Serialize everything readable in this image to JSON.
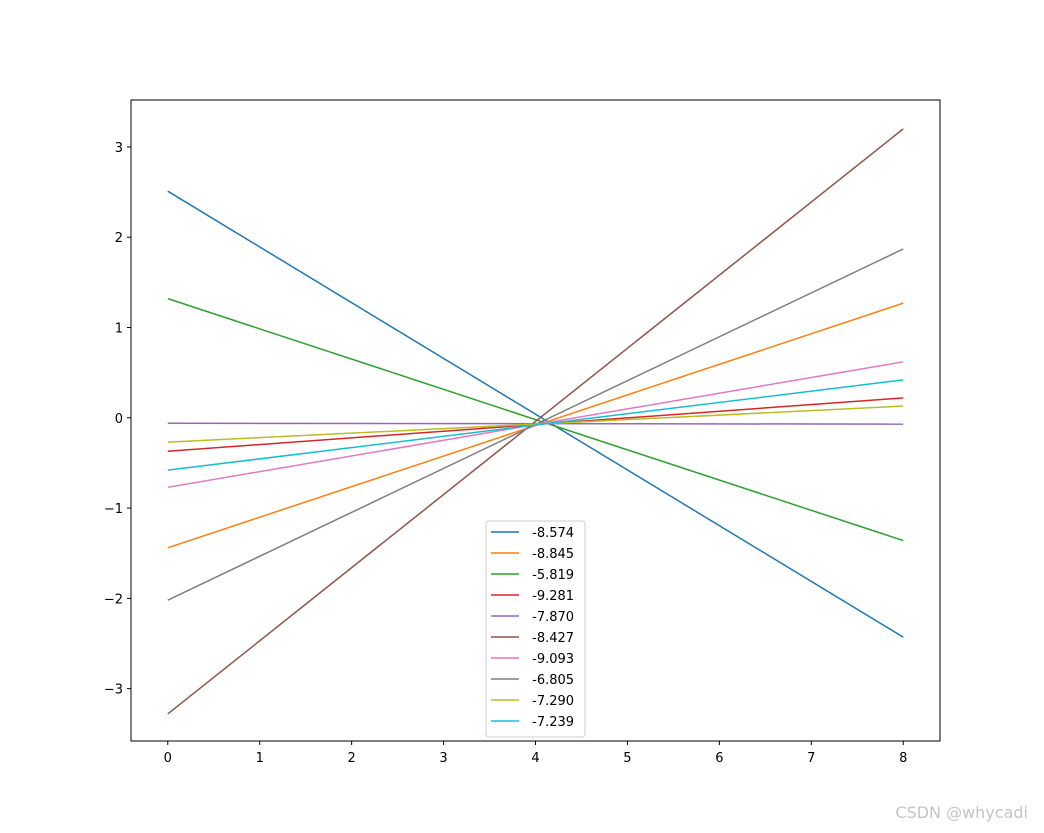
{
  "chart_data": {
    "type": "line",
    "xlim": [
      -0.4,
      8.4
    ],
    "ylim": [
      -3.58,
      3.52
    ],
    "xticks": [
      0,
      1,
      2,
      3,
      4,
      5,
      6,
      7,
      8
    ],
    "xtick_labels": [
      "0",
      "1",
      "2",
      "3",
      "4",
      "5",
      "6",
      "7",
      "8"
    ],
    "yticks": [
      -3,
      -2,
      -1,
      0,
      1,
      2,
      3
    ],
    "ytick_labels": [
      "−3",
      "−2",
      "−1",
      "0",
      "1",
      "2",
      "3"
    ],
    "grid": false,
    "legend_position": "lower-center",
    "series": [
      {
        "name": " -8.574",
        "color": "#1f77b4",
        "x": [
          0,
          8
        ],
        "y": [
          2.51,
          -2.43
        ]
      },
      {
        "name": " -8.845",
        "color": "#ff7f0e",
        "x": [
          0,
          8
        ],
        "y": [
          -1.44,
          1.27
        ]
      },
      {
        "name": " -5.819",
        "color": "#2ca02c",
        "x": [
          0,
          8
        ],
        "y": [
          1.32,
          -1.36
        ]
      },
      {
        "name": " -9.281",
        "color": "#d62728",
        "x": [
          0,
          8
        ],
        "y": [
          -0.37,
          0.22
        ]
      },
      {
        "name": " -7.870",
        "color": "#9467bd",
        "x": [
          0,
          8
        ],
        "y": [
          -0.06,
          -0.07
        ]
      },
      {
        "name": " -8.427",
        "color": "#8c564b",
        "x": [
          0,
          8
        ],
        "y": [
          -3.28,
          3.2
        ]
      },
      {
        "name": " -9.093",
        "color": "#e377c2",
        "x": [
          0,
          8
        ],
        "y": [
          -0.77,
          0.62
        ]
      },
      {
        "name": " -6.805",
        "color": "#7f7f7f",
        "x": [
          0,
          8
        ],
        "y": [
          -2.02,
          1.87
        ]
      },
      {
        "name": " -7.290",
        "color": "#bcbd22",
        "x": [
          0,
          8
        ],
        "y": [
          -0.27,
          0.13
        ]
      },
      {
        "name": " -7.239",
        "color": "#17becf",
        "x": [
          0,
          8
        ],
        "y": [
          -0.58,
          0.42
        ]
      }
    ]
  },
  "watermark": "CSDN @whycadi"
}
